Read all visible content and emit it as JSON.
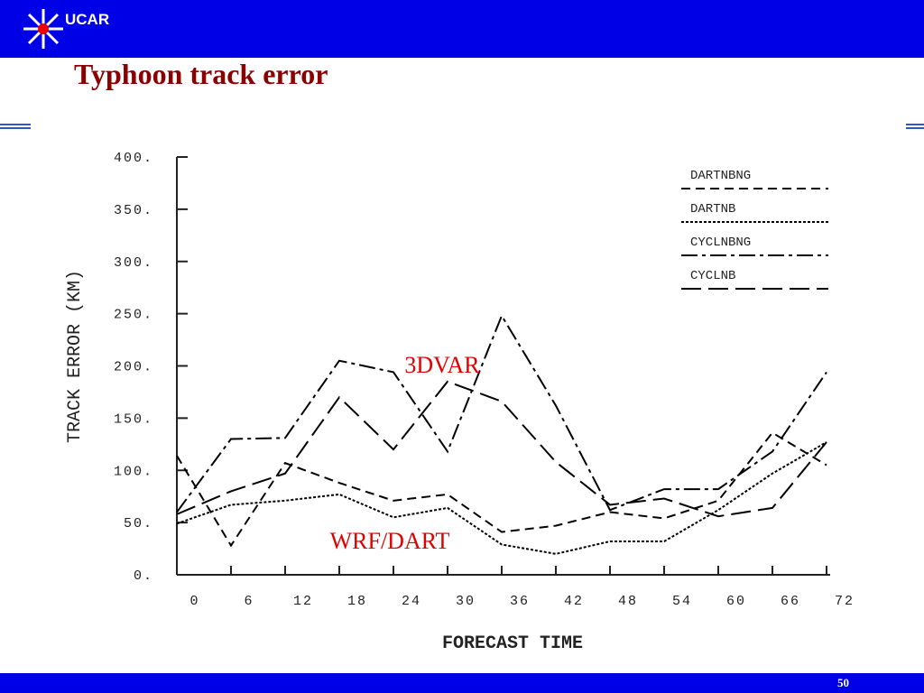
{
  "header": {
    "logo": "UCAR"
  },
  "title": "Typhoon track error",
  "page_number": "50",
  "chart_data": {
    "type": "line",
    "xlabel": "FORECAST TIME",
    "ylabel": "TRACK ERROR (KM)",
    "x": [
      0,
      6,
      12,
      18,
      24,
      30,
      36,
      42,
      48,
      54,
      60,
      66,
      72
    ],
    "series": [
      {
        "name": "DARTNBNG",
        "color": "#000000",
        "values": [
          114,
          28,
          107,
          88,
          71,
          77,
          41,
          47,
          60,
          54,
          71,
          136,
          105
        ]
      },
      {
        "name": "DARTNB",
        "color": "#000000",
        "values": [
          49,
          67,
          71,
          77,
          55,
          64,
          29,
          20,
          32,
          32,
          62,
          97,
          127
        ]
      },
      {
        "name": "CYCLNBNG",
        "color": "#000000",
        "values": [
          60,
          130,
          131,
          205,
          194,
          118,
          248,
          162,
          62,
          82,
          82,
          118,
          194
        ]
      },
      {
        "name": "CYCLNB",
        "color": "#000000",
        "values": [
          58,
          80,
          97,
          170,
          120,
          185,
          166,
          108,
          67,
          73,
          56,
          64,
          127
        ]
      }
    ],
    "xlim": [
      0,
      72
    ],
    "ylim": [
      0,
      400
    ],
    "xticks": [
      0,
      6,
      12,
      18,
      24,
      30,
      36,
      42,
      48,
      54,
      60,
      66,
      72
    ],
    "yticks": [
      {
        "value": 0,
        "label": "0."
      },
      {
        "value": 50,
        "label": "50."
      },
      {
        "value": 100,
        "label": "100."
      },
      {
        "value": 150,
        "label": "150."
      },
      {
        "value": 200,
        "label": "200."
      },
      {
        "value": 250,
        "label": "250."
      },
      {
        "value": 300,
        "label": "300."
      },
      {
        "value": 350,
        "label": "350."
      },
      {
        "value": 400,
        "label": "400."
      }
    ],
    "legend": "upper right",
    "annotations": [
      {
        "text": "3DVAR",
        "color": "#e00000"
      },
      {
        "text": "WRF/DART",
        "color": "#e00000"
      }
    ]
  }
}
